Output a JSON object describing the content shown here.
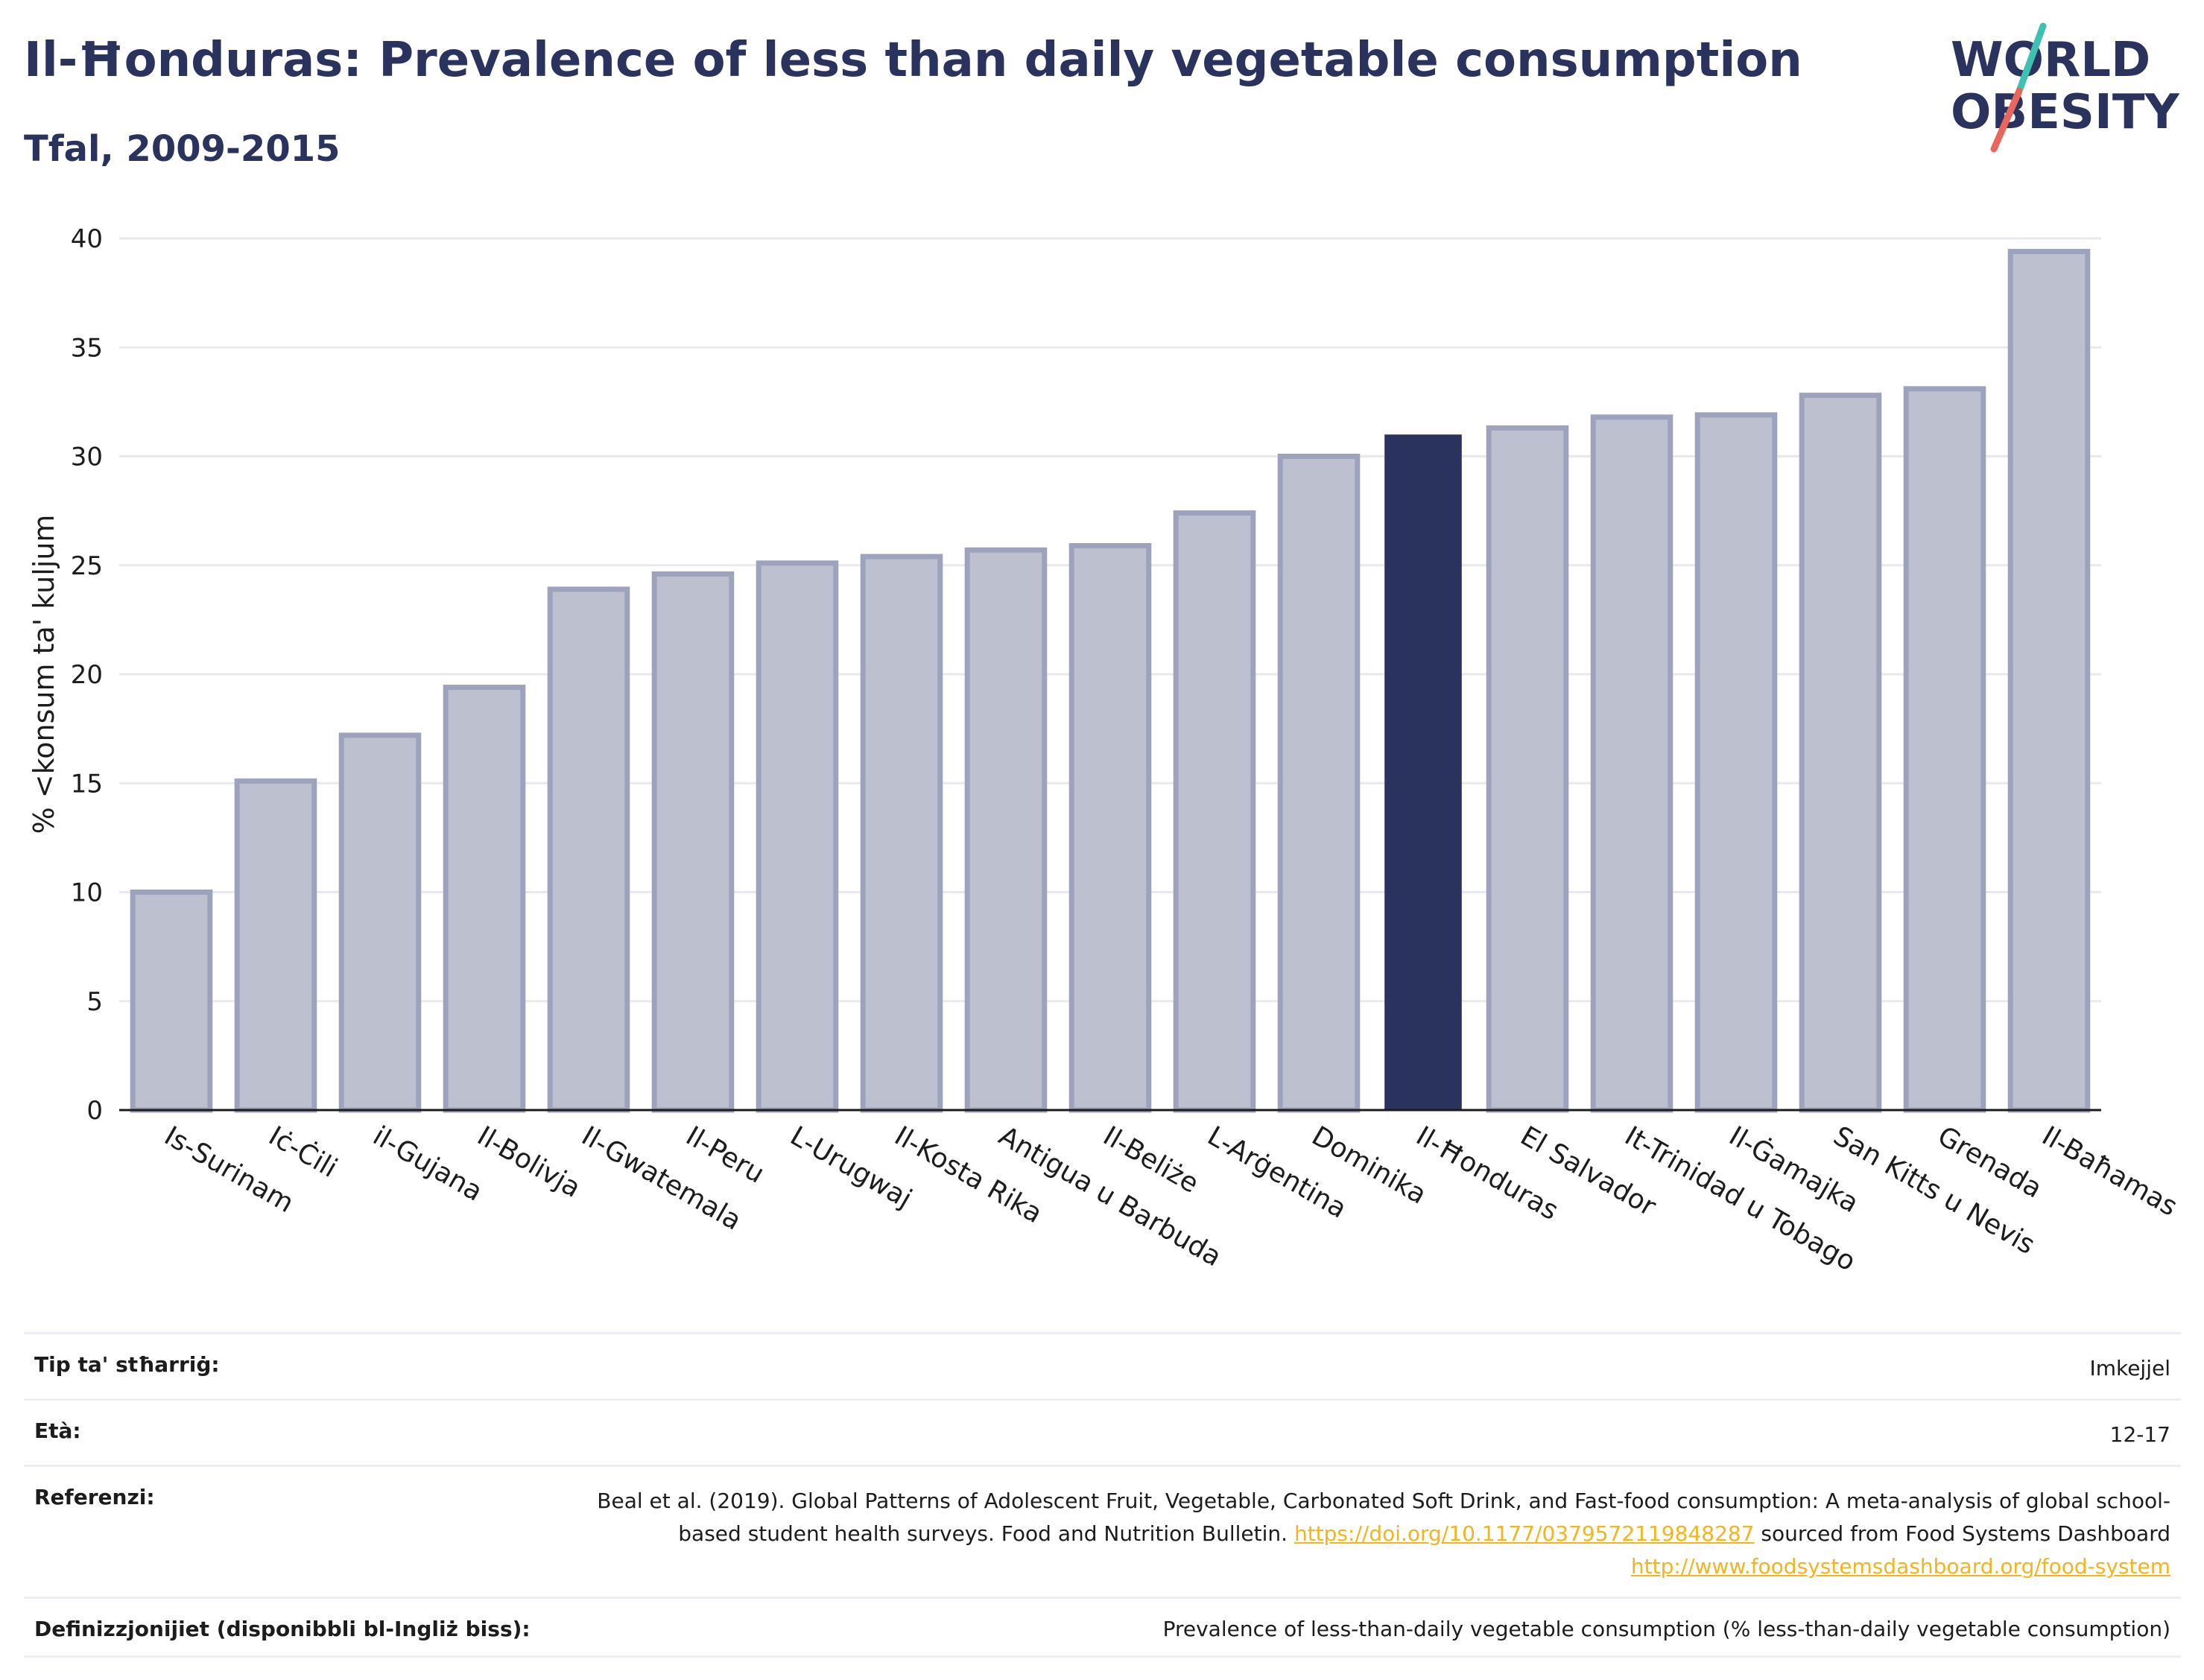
{
  "header": {
    "title": "Il-Ħonduras: Prevalence of less than daily vegetable consumption",
    "subtitle": "Tfal, 2009-2015"
  },
  "logo": {
    "line1": "WORLD",
    "line2": "OBESITY",
    "accent_colors": [
      "#3ec1b3",
      "#e8665c"
    ]
  },
  "colors": {
    "highlight": "#2a335e",
    "bar": "#bdc0cf",
    "bar_outline": "#9da3bc",
    "link": "#f2b51f"
  },
  "chart_data": {
    "type": "bar",
    "categories": [
      "Is-Surinam",
      "Iċ-Ċili",
      "il-Gujana",
      "Il-Bolivja",
      "Il-Gwatemala",
      "Il-Peru",
      "L-Urugwaj",
      "Il-Kosta Rika",
      "Antigua u Barbuda",
      "Il-Beliże",
      "L-Arġentina",
      "Dominika",
      "Il-Ħonduras",
      "El Salvador",
      "It-Trinidad u Tobago",
      "Il-Ġamajka",
      "San Kitts u Nevis",
      "Grenada",
      "Il-Baħamas"
    ],
    "values": [
      10.0,
      15.1,
      17.2,
      19.4,
      23.9,
      24.6,
      25.1,
      25.4,
      25.7,
      25.9,
      27.4,
      30.0,
      31.0,
      31.3,
      31.8,
      31.9,
      32.8,
      33.1,
      39.4
    ],
    "highlight": "Il-Ħonduras",
    "ylabel": "% <konsum ta' kuljum",
    "xlabel": "",
    "ylim": [
      0,
      40
    ],
    "yticks": [
      0,
      5,
      10,
      15,
      20,
      25,
      30,
      35,
      40
    ],
    "grid": true
  },
  "info": {
    "rows": [
      {
        "label": "Tip ta' stħarriġ:",
        "value": "Imkejjel"
      },
      {
        "label": "Età:",
        "value": "12-17"
      },
      {
        "label": "Referenzi:",
        "text1": "Beal et al. (2019). Global Patterns of Adolescent Fruit, Vegetable, Carbonated Soft Drink, and Fast-food consumption: A meta-analysis of global school-based student health surveys. Food and Nutrition Bulletin.",
        "link1": "https://doi.org/10.1177/0379572119848287",
        "text2": "sourced from Food Systems Dashboard",
        "link2": "http://www.foodsystemsdashboard.org/food-system"
      },
      {
        "label": "Definizzjonijiet (disponibbli bl-Ingliż biss):",
        "value": "Prevalence of less-than-daily vegetable consumption (% less-than-daily vegetable consumption)"
      }
    ]
  }
}
